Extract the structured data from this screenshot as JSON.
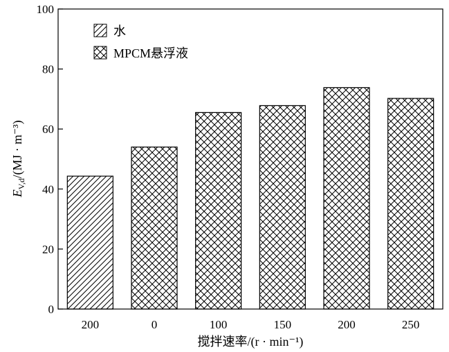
{
  "chart_data": {
    "type": "bar",
    "categories": [
      "200",
      "0",
      "100",
      "150",
      "200",
      "250"
    ],
    "series": [
      {
        "name": "水",
        "indices": [
          0
        ],
        "pattern": "diagonal-hatch"
      },
      {
        "name": "MPCM悬浮液",
        "indices": [
          1,
          2,
          3,
          4,
          5
        ],
        "pattern": "cross-hatch"
      }
    ],
    "values": [
      44.3,
      54.0,
      65.5,
      67.8,
      73.8,
      70.2
    ],
    "xlabel": "搅拌速率/(r · min⁻¹)",
    "ylabel_main": "E",
    "ylabel_sub": "V,d",
    "ylabel_rest": "/(MJ · m⁻³)",
    "ylim": [
      0,
      100
    ],
    "yticks": [
      0,
      20,
      40,
      60,
      80,
      100
    ],
    "grid": false,
    "legend_position": "top-left"
  }
}
